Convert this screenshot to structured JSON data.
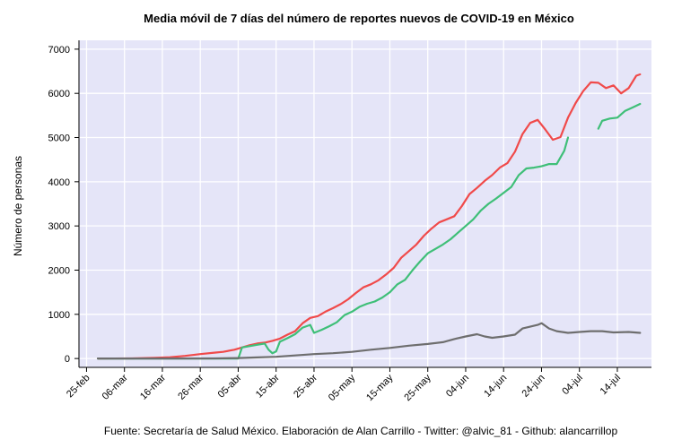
{
  "chart_data": {
    "type": "line",
    "title": "Media móvil de 7 días del número de reportes nuevos de COVID-19 en México",
    "xlabel": "",
    "ylabel": "Número de personas",
    "source": "Fuente: Secretaría de Salud México. Elaboración de Alan Carrillo - Twitter: @alvic_81 - Github: alancarrillop",
    "xlim": [
      "2020-02-23",
      "2020-07-23"
    ],
    "ylim": [
      -200,
      7200
    ],
    "x_ticks": [
      {
        "date": "2020-02-25",
        "label": "25-feb"
      },
      {
        "date": "2020-03-06",
        "label": "06-mar"
      },
      {
        "date": "2020-03-16",
        "label": "16-mar"
      },
      {
        "date": "2020-03-26",
        "label": "26-mar"
      },
      {
        "date": "2020-04-05",
        "label": "05-abr"
      },
      {
        "date": "2020-04-15",
        "label": "15-abr"
      },
      {
        "date": "2020-04-25",
        "label": "25-abr"
      },
      {
        "date": "2020-05-05",
        "label": "05-may"
      },
      {
        "date": "2020-05-15",
        "label": "15-may"
      },
      {
        "date": "2020-05-25",
        "label": "25-may"
      },
      {
        "date": "2020-06-04",
        "label": "04-jun"
      },
      {
        "date": "2020-06-14",
        "label": "14-jun"
      },
      {
        "date": "2020-06-24",
        "label": "24-jun"
      },
      {
        "date": "2020-07-04",
        "label": "04-jul"
      },
      {
        "date": "2020-07-14",
        "label": "14-jul"
      }
    ],
    "y_ticks": [
      0,
      1000,
      2000,
      3000,
      4000,
      5000,
      6000,
      7000
    ],
    "grid": true,
    "background": "#e5e5f8",
    "series": [
      {
        "color": "#f04a4a",
        "points": [
          [
            "2020-02-28",
            0
          ],
          [
            "2020-03-08",
            3
          ],
          [
            "2020-03-14",
            15
          ],
          [
            "2020-03-18",
            30
          ],
          [
            "2020-03-22",
            60
          ],
          [
            "2020-03-26",
            100
          ],
          [
            "2020-03-30",
            135
          ],
          [
            "2020-04-01",
            150
          ],
          [
            "2020-04-04",
            200
          ],
          [
            "2020-04-06",
            250
          ],
          [
            "2020-04-08",
            300
          ],
          [
            "2020-04-10",
            340
          ],
          [
            "2020-04-12",
            360
          ],
          [
            "2020-04-14",
            400
          ],
          [
            "2020-04-16",
            450
          ],
          [
            "2020-04-18",
            540
          ],
          [
            "2020-04-20",
            620
          ],
          [
            "2020-04-22",
            800
          ],
          [
            "2020-04-24",
            920
          ],
          [
            "2020-04-26",
            960
          ],
          [
            "2020-04-28",
            1060
          ],
          [
            "2020-04-30",
            1140
          ],
          [
            "2020-05-02",
            1230
          ],
          [
            "2020-05-04",
            1340
          ],
          [
            "2020-05-06",
            1480
          ],
          [
            "2020-05-08",
            1610
          ],
          [
            "2020-05-10",
            1680
          ],
          [
            "2020-05-12",
            1770
          ],
          [
            "2020-05-14",
            1900
          ],
          [
            "2020-05-16",
            2050
          ],
          [
            "2020-05-18",
            2280
          ],
          [
            "2020-05-20",
            2430
          ],
          [
            "2020-05-22",
            2580
          ],
          [
            "2020-05-24",
            2780
          ],
          [
            "2020-05-26",
            2940
          ],
          [
            "2020-05-28",
            3080
          ],
          [
            "2020-05-30",
            3150
          ],
          [
            "2020-06-01",
            3220
          ],
          [
            "2020-06-03",
            3450
          ],
          [
            "2020-06-05",
            3720
          ],
          [
            "2020-06-07",
            3860
          ],
          [
            "2020-06-09",
            4020
          ],
          [
            "2020-06-11",
            4150
          ],
          [
            "2020-06-13",
            4320
          ],
          [
            "2020-06-15",
            4420
          ],
          [
            "2020-06-17",
            4680
          ],
          [
            "2020-06-19",
            5080
          ],
          [
            "2020-06-21",
            5330
          ],
          [
            "2020-06-23",
            5400
          ],
          [
            "2020-06-25",
            5180
          ],
          [
            "2020-06-27",
            4950
          ],
          [
            "2020-06-29",
            5010
          ],
          [
            "2020-07-01",
            5450
          ],
          [
            "2020-07-03",
            5780
          ],
          [
            "2020-07-05",
            6050
          ],
          [
            "2020-07-07",
            6250
          ],
          [
            "2020-07-09",
            6240
          ],
          [
            "2020-07-11",
            6120
          ],
          [
            "2020-07-13",
            6180
          ],
          [
            "2020-07-15",
            6000
          ],
          [
            "2020-07-17",
            6120
          ],
          [
            "2020-07-19",
            6400
          ],
          [
            "2020-07-20",
            6430
          ]
        ]
      },
      {
        "color": "#3fbf78",
        "segments": [
          [
            [
              "2020-02-28",
              0
            ],
            [
              "2020-03-14",
              0
            ],
            [
              "2020-03-28",
              0
            ],
            [
              "2020-04-04",
              0
            ],
            [
              "2020-04-05",
              0
            ],
            [
              "2020-04-06",
              250
            ],
            [
              "2020-04-08",
              280
            ],
            [
              "2020-04-10",
              310
            ],
            [
              "2020-04-12",
              340
            ],
            [
              "2020-04-13",
              200
            ],
            [
              "2020-04-14",
              120
            ],
            [
              "2020-04-15",
              160
            ],
            [
              "2020-04-16",
              380
            ],
            [
              "2020-04-18",
              460
            ],
            [
              "2020-04-20",
              550
            ],
            [
              "2020-04-22",
              700
            ],
            [
              "2020-04-24",
              760
            ],
            [
              "2020-04-25",
              580
            ],
            [
              "2020-04-27",
              650
            ],
            [
              "2020-04-29",
              730
            ],
            [
              "2020-05-01",
              820
            ],
            [
              "2020-05-03",
              980
            ],
            [
              "2020-05-05",
              1060
            ],
            [
              "2020-05-07",
              1170
            ],
            [
              "2020-05-09",
              1240
            ],
            [
              "2020-05-11",
              1290
            ],
            [
              "2020-05-13",
              1380
            ],
            [
              "2020-05-15",
              1500
            ],
            [
              "2020-05-17",
              1680
            ],
            [
              "2020-05-19",
              1780
            ],
            [
              "2020-05-21",
              2000
            ],
            [
              "2020-05-23",
              2200
            ],
            [
              "2020-05-25",
              2380
            ],
            [
              "2020-05-27",
              2480
            ],
            [
              "2020-05-29",
              2580
            ],
            [
              "2020-05-31",
              2700
            ],
            [
              "2020-06-02",
              2850
            ],
            [
              "2020-06-04",
              3000
            ],
            [
              "2020-06-06",
              3150
            ],
            [
              "2020-06-08",
              3350
            ],
            [
              "2020-06-10",
              3500
            ],
            [
              "2020-06-12",
              3620
            ],
            [
              "2020-06-14",
              3750
            ],
            [
              "2020-06-16",
              3880
            ],
            [
              "2020-06-18",
              4150
            ],
            [
              "2020-06-20",
              4300
            ],
            [
              "2020-06-22",
              4320
            ],
            [
              "2020-06-24",
              4350
            ],
            [
              "2020-06-26",
              4400
            ],
            [
              "2020-06-28",
              4400
            ],
            [
              "2020-06-30",
              4700
            ],
            [
              "2020-07-01",
              5000
            ]
          ],
          [
            [
              "2020-07-09",
              5200
            ],
            [
              "2020-07-10",
              5380
            ],
            [
              "2020-07-12",
              5430
            ],
            [
              "2020-07-14",
              5450
            ],
            [
              "2020-07-16",
              5600
            ],
            [
              "2020-07-18",
              5680
            ],
            [
              "2020-07-20",
              5760
            ]
          ]
        ]
      },
      {
        "color": "#6e6e6e",
        "points": [
          [
            "2020-02-28",
            0
          ],
          [
            "2020-03-20",
            0
          ],
          [
            "2020-03-30",
            2
          ],
          [
            "2020-04-05",
            10
          ],
          [
            "2020-04-10",
            25
          ],
          [
            "2020-04-15",
            40
          ],
          [
            "2020-04-20",
            70
          ],
          [
            "2020-04-25",
            100
          ],
          [
            "2020-04-30",
            120
          ],
          [
            "2020-05-05",
            150
          ],
          [
            "2020-05-10",
            200
          ],
          [
            "2020-05-15",
            240
          ],
          [
            "2020-05-20",
            290
          ],
          [
            "2020-05-25",
            330
          ],
          [
            "2020-05-29",
            370
          ],
          [
            "2020-06-01",
            440
          ],
          [
            "2020-06-04",
            500
          ],
          [
            "2020-06-07",
            550
          ],
          [
            "2020-06-09",
            500
          ],
          [
            "2020-06-11",
            470
          ],
          [
            "2020-06-14",
            500
          ],
          [
            "2020-06-17",
            540
          ],
          [
            "2020-06-19",
            680
          ],
          [
            "2020-06-21",
            720
          ],
          [
            "2020-06-23",
            760
          ],
          [
            "2020-06-24",
            800
          ],
          [
            "2020-06-26",
            680
          ],
          [
            "2020-06-28",
            620
          ],
          [
            "2020-07-01",
            580
          ],
          [
            "2020-07-04",
            600
          ],
          [
            "2020-07-07",
            620
          ],
          [
            "2020-07-10",
            620
          ],
          [
            "2020-07-13",
            590
          ],
          [
            "2020-07-17",
            600
          ],
          [
            "2020-07-20",
            580
          ]
        ]
      }
    ]
  }
}
